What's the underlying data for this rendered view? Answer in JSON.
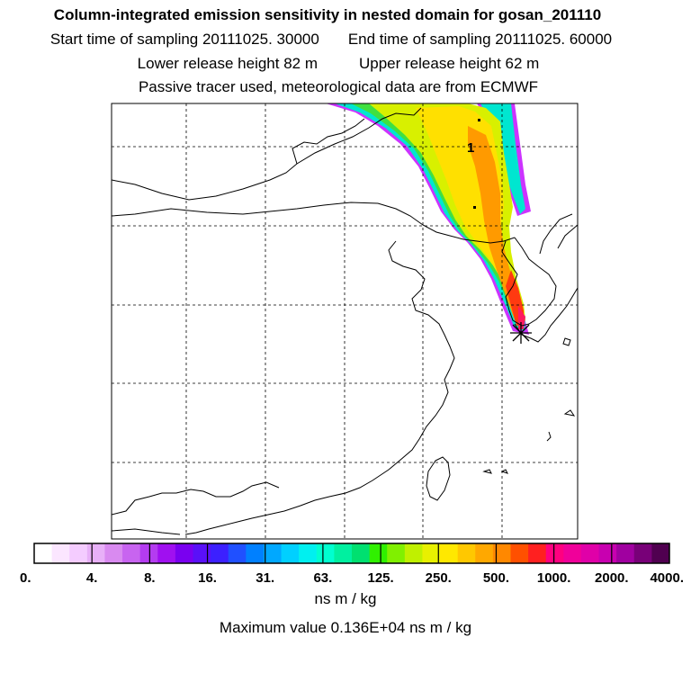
{
  "header": {
    "title": "Column-integrated emission sensitivity in nested domain for gosan_201110",
    "start_label": "Start time of sampling 20111025. 30000",
    "end_label": "End time of sampling 20111025. 60000",
    "lower_label": "Lower release height   82 m",
    "upper_label": "Upper release height   62 m",
    "tracer_label": "Passive tracer used, meteorological data are from ECMWF"
  },
  "chart_data": {
    "type": "heatmap",
    "title": "Column-integrated emission sensitivity in nested domain for gosan_201110",
    "release_point_marker": "asterisk",
    "contour_label": "1",
    "colorbar": {
      "tick_labels": [
        "0.",
        "4.",
        "8.",
        "16.",
        "31.",
        "63.",
        "125.",
        "250.",
        "500.",
        "1000.",
        "2000.",
        "4000."
      ],
      "tick_values": [
        0,
        4,
        8,
        16,
        31,
        63,
        125,
        250,
        500,
        1000,
        2000,
        4000
      ],
      "colors": [
        "#ffffff",
        "#fbe6ff",
        "#f4ccff",
        "#e8b0f8",
        "#d98af0",
        "#c864f0",
        "#b43cf0",
        "#a010f0",
        "#7a00f0",
        "#5a10f8",
        "#3c20ff",
        "#2050ff",
        "#0080ff",
        "#00a8ff",
        "#00d0ff",
        "#00f0f0",
        "#00ffd0",
        "#00f0a0",
        "#00e070",
        "#30f000",
        "#80f000",
        "#c0f000",
        "#e8f000",
        "#ffe800",
        "#ffc800",
        "#ffa800",
        "#ff8800",
        "#ff5000",
        "#ff2020",
        "#ff0080",
        "#f0009a",
        "#e000a8",
        "#c800b0",
        "#a000a0",
        "#780078",
        "#500050"
      ],
      "unit": "ns m / kg"
    },
    "maximum_value_label": "Maximum value  0.136E+04 ns m / kg"
  }
}
